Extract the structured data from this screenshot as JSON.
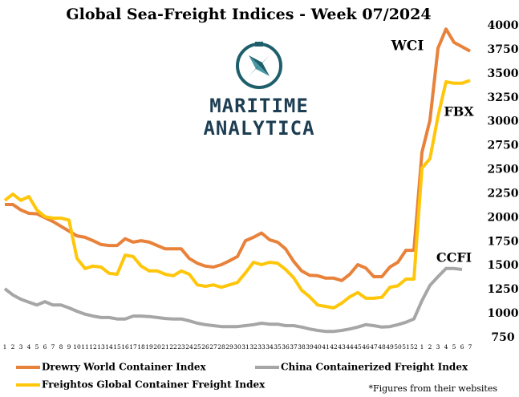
{
  "chart_data": {
    "type": "line",
    "title": "Global Sea-Freight Indices -  Week 07/2024",
    "logo_text": [
      "MARITIME",
      "ANALYTICA"
    ],
    "annotations": [
      "WCI",
      "FBX",
      "CCFI"
    ],
    "note": "*Figures from their websites",
    "categories": [
      "1",
      "2",
      "3",
      "4",
      "5",
      "6",
      "7",
      "8",
      "9",
      "10",
      "11",
      "12",
      "13",
      "14",
      "15",
      "16",
      "17",
      "18",
      "19",
      "20",
      "21",
      "22",
      "23",
      "24",
      "25",
      "26",
      "27",
      "28",
      "29",
      "30",
      "31",
      "32",
      "33",
      "34",
      "35",
      "36",
      "37",
      "38",
      "39",
      "40",
      "41",
      "42",
      "43",
      "44",
      "45",
      "46",
      "47",
      "48",
      "49",
      "50",
      "51",
      "52",
      "1",
      "2",
      "3",
      "4",
      "5",
      "6",
      "7"
    ],
    "ylim": [
      750,
      4000
    ],
    "yticks": [
      750,
      1000,
      1250,
      1500,
      1750,
      2000,
      2250,
      2500,
      2750,
      3000,
      3250,
      3500,
      3750,
      4000
    ],
    "series": [
      {
        "name": "Drewry World Container Index",
        "color": "#e8823a",
        "values": [
          2137,
          2137,
          2080,
          2045,
          2040,
          2000,
          1960,
          1910,
          1860,
          1810,
          1795,
          1760,
          1720,
          1710,
          1710,
          1780,
          1745,
          1760,
          1745,
          1710,
          1675,
          1675,
          1675,
          1575,
          1525,
          1495,
          1485,
          1510,
          1550,
          1595,
          1760,
          1795,
          1840,
          1770,
          1745,
          1675,
          1545,
          1445,
          1400,
          1395,
          1370,
          1370,
          1345,
          1410,
          1510,
          1475,
          1385,
          1385,
          1485,
          1535,
          1660,
          1660,
          2680,
          3015,
          3765,
          3965,
          3825,
          3780,
          3735
        ]
      },
      {
        "name": "China Containerized Freight Index",
        "color": "#a6a6a6",
        "values": [
          1260,
          1195,
          1150,
          1120,
          1090,
          1125,
          1090,
          1090,
          1060,
          1025,
          995,
          975,
          960,
          960,
          945,
          945,
          975,
          975,
          970,
          960,
          950,
          945,
          945,
          925,
          900,
          885,
          875,
          865,
          865,
          865,
          875,
          885,
          900,
          890,
          890,
          875,
          875,
          860,
          840,
          825,
          815,
          815,
          825,
          840,
          860,
          885,
          875,
          860,
          865,
          885,
          910,
          945,
          1135,
          1295,
          1385,
          1470,
          1470,
          1460,
          null
        ]
      },
      {
        "name": "Freightos Global Container Freight Index",
        "color": "#ffc60a",
        "values": [
          2180,
          2245,
          2180,
          2220,
          2080,
          2010,
          1995,
          1995,
          1975,
          1575,
          1470,
          1495,
          1485,
          1420,
          1410,
          1610,
          1595,
          1495,
          1445,
          1445,
          1410,
          1395,
          1445,
          1410,
          1300,
          1285,
          1300,
          1275,
          1300,
          1325,
          1425,
          1535,
          1510,
          1535,
          1525,
          1460,
          1375,
          1245,
          1175,
          1090,
          1075,
          1060,
          1110,
          1175,
          1220,
          1160,
          1160,
          1170,
          1275,
          1290,
          1360,
          1360,
          2515,
          2615,
          3055,
          3415,
          3400,
          3400,
          3430
        ]
      }
    ]
  }
}
